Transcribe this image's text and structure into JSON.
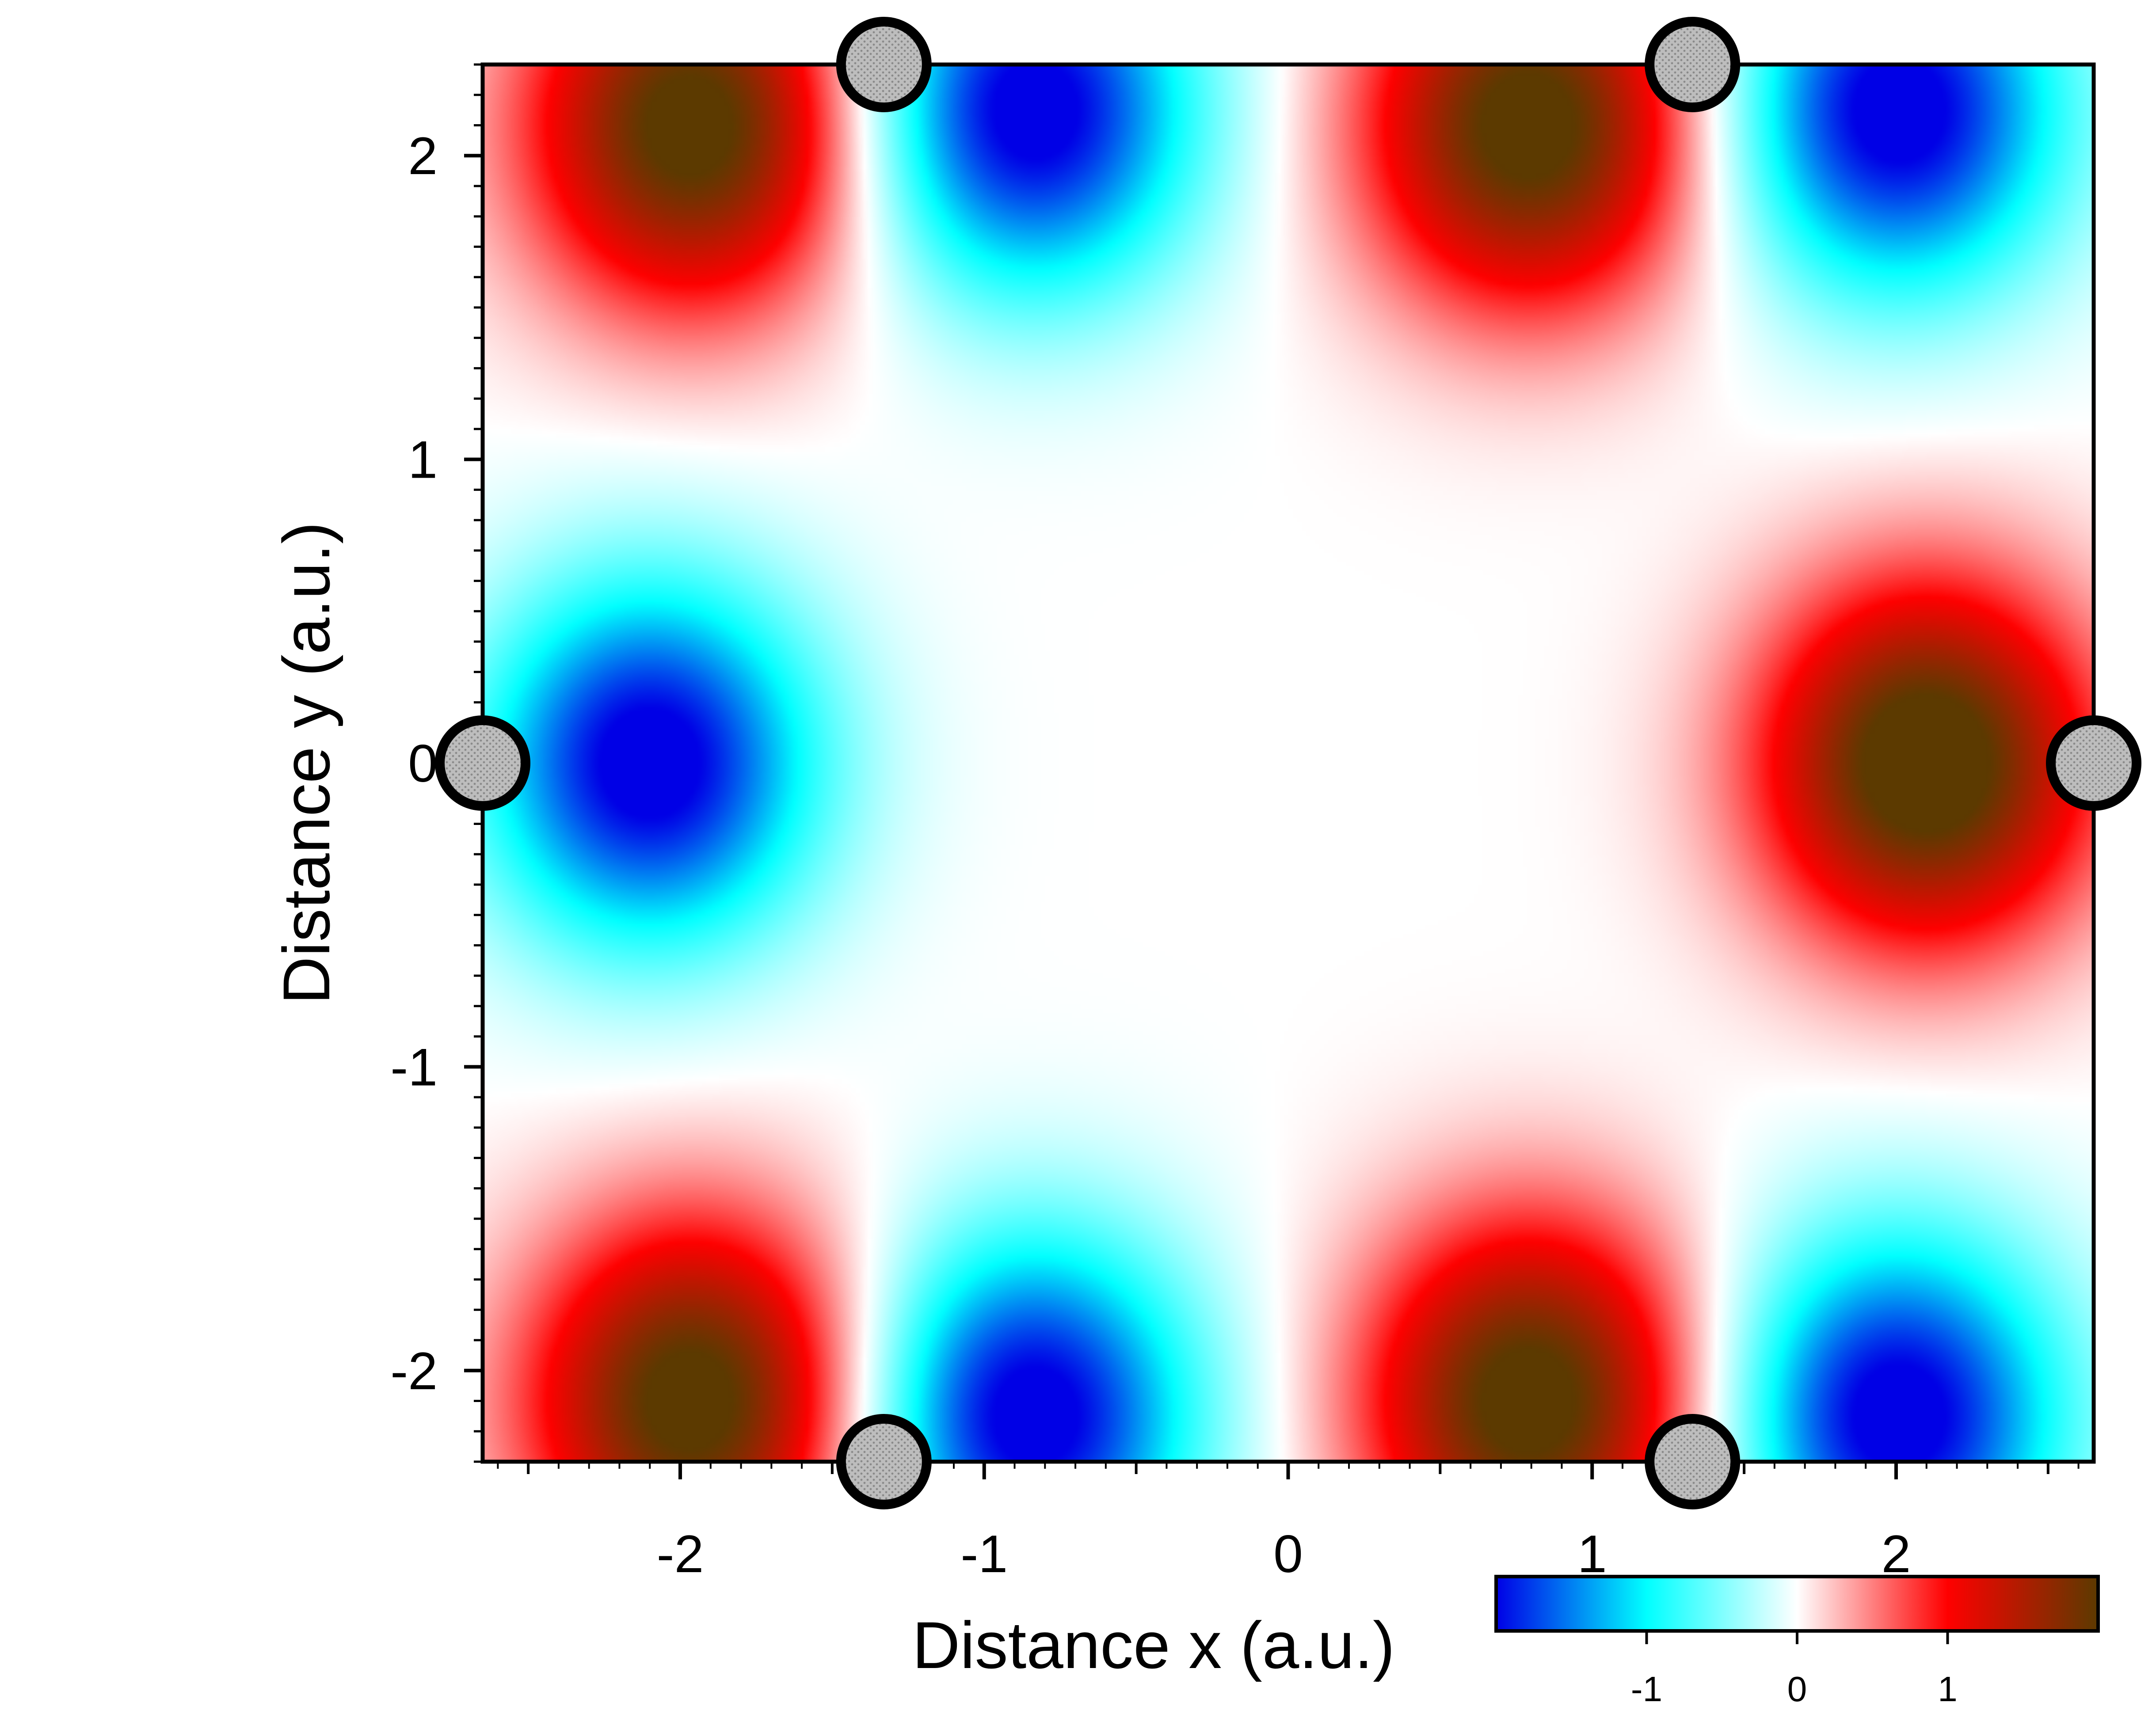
{
  "chart_data": {
    "type": "heatmap",
    "title": "",
    "xlabel": "Distance x (a.u.)",
    "ylabel": "Distance y (a.u.)",
    "xlim": [
      -2.65,
      2.65
    ],
    "ylim": [
      -2.3,
      2.3
    ],
    "x_ticks": [
      -2,
      -1,
      0,
      1,
      2
    ],
    "x_tick_labels": [
      "-2",
      "-1",
      "0",
      "1",
      "2"
    ],
    "y_ticks": [
      -2,
      -1,
      0,
      1,
      2
    ],
    "y_tick_labels": [
      "-2",
      "-1",
      "0",
      "1",
      "2"
    ],
    "grid": false,
    "colorbar": {
      "placement": "bottom-right",
      "range": [
        -2,
        2
      ],
      "ticks": [
        -1,
        0,
        1
      ],
      "tick_labels": [
        "-1",
        "0",
        "1"
      ],
      "colors": [
        "#0000e6",
        "#00ffff",
        "#ffffff",
        "#ff0000",
        "#5c3a00"
      ]
    },
    "atoms": [
      {
        "x": -2.65,
        "y": 0
      },
      {
        "x": 2.65,
        "y": 0
      },
      {
        "x": -1.33,
        "y": 2.3
      },
      {
        "x": 1.33,
        "y": 2.3
      },
      {
        "x": -1.33,
        "y": -2.3
      },
      {
        "x": 1.33,
        "y": -2.3
      }
    ],
    "extrema": [
      {
        "x": -2.1,
        "y": 0,
        "value": -1.9
      },
      {
        "x": 2.1,
        "y": 0,
        "value": 2.0
      },
      {
        "x": -1.95,
        "y": 2.1,
        "value": 1.9
      },
      {
        "x": 0.8,
        "y": 2.1,
        "value": 1.9
      },
      {
        "x": -1.95,
        "y": -2.1,
        "value": 1.9
      },
      {
        "x": 0.8,
        "y": -2.1,
        "value": 1.9
      },
      {
        "x": -0.85,
        "y": 2.15,
        "value": -1.9
      },
      {
        "x": 2.0,
        "y": 2.15,
        "value": -1.9
      },
      {
        "x": -0.85,
        "y": -2.15,
        "value": -1.9
      },
      {
        "x": 2.0,
        "y": -2.15,
        "value": -1.9
      }
    ],
    "atom_color": "#b4b4b4"
  }
}
